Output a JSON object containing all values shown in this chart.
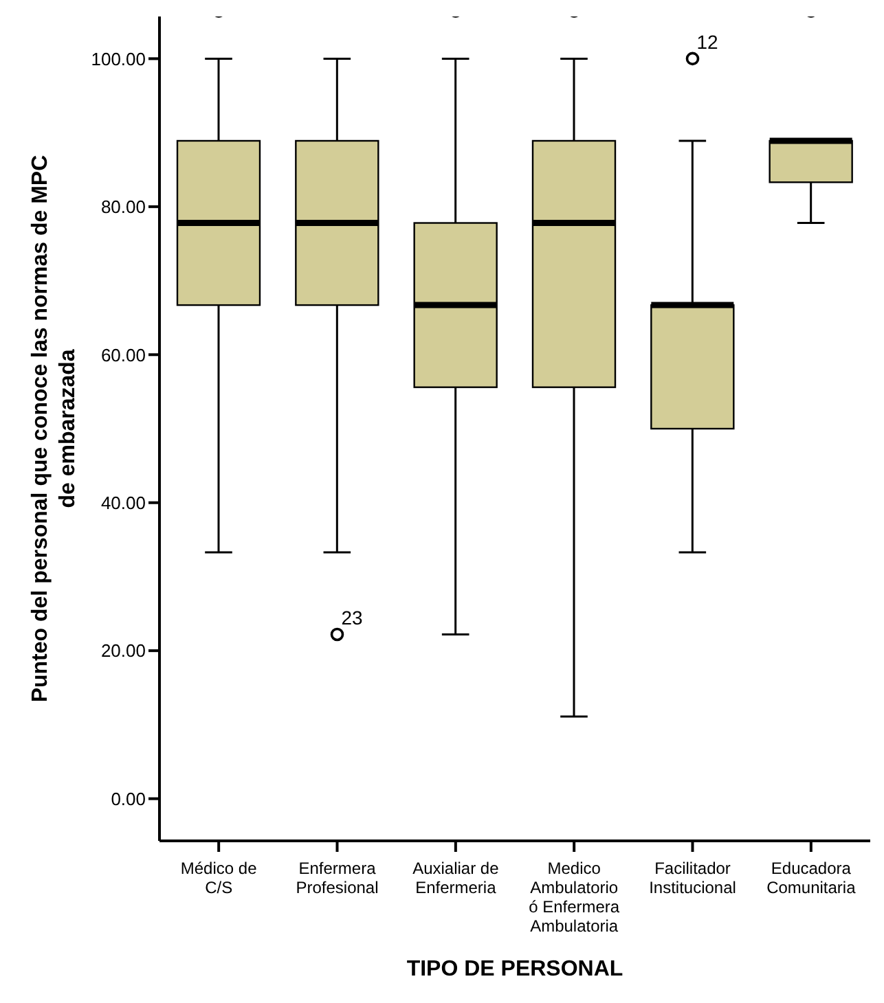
{
  "chart_data": {
    "type": "box",
    "xlabel": "TIPO DE PERSONAL",
    "ylabel": "Punteo del personal que conoce las normas de MPC\nde embarazada",
    "categories": [
      "Médico de\nC/S",
      "Enfermera\nProfesional",
      "Auxialiar de\nEnfermeria",
      "Medico\nAmbulatorio\nó Enfermera\nAmbulatoria",
      "Facilitador\nInstitucional",
      "Educadora\nComunitaria"
    ],
    "color": "#d3cd97",
    "boxes": [
      {
        "low": 33.3,
        "q1": 66.7,
        "median": 77.8,
        "q3": 88.9,
        "high": 100
      },
      {
        "low": 33.3,
        "q1": 66.7,
        "median": 77.8,
        "q3": 88.9,
        "high": 100,
        "outliers": [
          22.2
        ]
      },
      {
        "low": 22.2,
        "q1": 55.6,
        "median": 66.7,
        "q3": 77.8,
        "high": 100
      },
      {
        "low": 11.1,
        "q1": 55.6,
        "median": 77.8,
        "q3": 88.9,
        "high": 100
      },
      {
        "low": 33.3,
        "q1": 50,
        "median": 66.7,
        "q3": 66.7,
        "high": 88.9,
        "outliers": [
          100
        ]
      },
      {
        "low": 77.8,
        "q1": 83.3,
        "median": 88.9,
        "q3": 88.9,
        "high": 88.9
      }
    ],
    "ylim": [
      -5.7,
      105.7
    ],
    "yticks": [
      {
        "value": 0,
        "label": "0.00"
      },
      {
        "value": 20,
        "label": "20.00"
      },
      {
        "value": 40,
        "label": "40.00"
      },
      {
        "value": 60,
        "label": "60.00"
      },
      {
        "value": 80,
        "label": "80.00"
      },
      {
        "value": 100,
        "label": "100.00"
      }
    ],
    "annotations": [
      "23",
      "12"
    ]
  }
}
